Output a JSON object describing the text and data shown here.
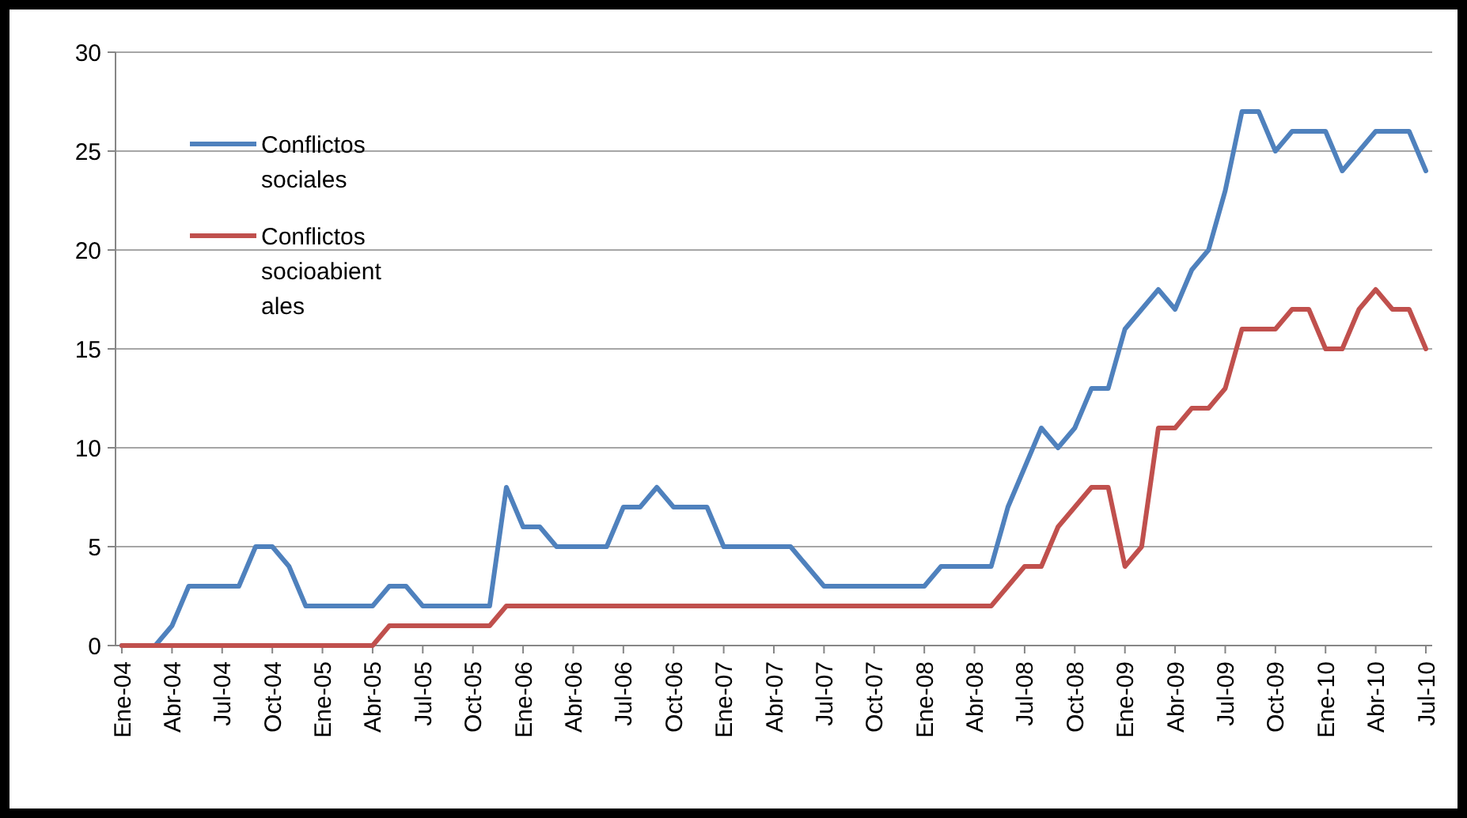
{
  "chart_data": {
    "type": "line",
    "categories": [
      "Ene-04",
      null,
      null,
      "Abr-04",
      null,
      null,
      "Jul-04",
      null,
      null,
      "Oct-04",
      null,
      null,
      "Ene-05",
      null,
      null,
      "Abr-05",
      null,
      null,
      "Jul-05",
      null,
      null,
      "Oct-05",
      null,
      null,
      "Ene-06",
      null,
      null,
      "Abr-06",
      null,
      null,
      "Jul-06",
      null,
      null,
      "Oct-06",
      null,
      null,
      "Ene-07",
      null,
      null,
      "Abr-07",
      null,
      null,
      "Jul-07",
      null,
      null,
      "Oct-07",
      null,
      null,
      "Ene-08",
      null,
      null,
      "Abr-08",
      null,
      null,
      "Jul-08",
      null,
      null,
      "Oct-08",
      null,
      null,
      "Ene-09",
      null,
      null,
      "Abr-09",
      null,
      null,
      "Jul-09",
      null,
      null,
      "Oct-09",
      null,
      null,
      "Ene-10",
      null,
      null,
      "Abr-10",
      null,
      null,
      "Jul-10"
    ],
    "series": [
      {
        "name": "Conflictos sociales",
        "color": "#4f81bd",
        "values": [
          0,
          0,
          0,
          1,
          3,
          3,
          3,
          3,
          5,
          5,
          4,
          2,
          2,
          2,
          2,
          2,
          3,
          3,
          2,
          2,
          2,
          2,
          2,
          8,
          6,
          6,
          5,
          5,
          5,
          5,
          7,
          7,
          8,
          7,
          7,
          7,
          5,
          5,
          5,
          5,
          5,
          4,
          3,
          3,
          3,
          3,
          3,
          3,
          3,
          4,
          4,
          4,
          4,
          7,
          9,
          11,
          10,
          11,
          13,
          13,
          16,
          17,
          18,
          17,
          19,
          20,
          23,
          27,
          27,
          25,
          26,
          26,
          26,
          24,
          25,
          26,
          26,
          26,
          24
        ]
      },
      {
        "name": "Conflictos socioabientales",
        "color": "#c0504d",
        "values": [
          0,
          0,
          0,
          0,
          0,
          0,
          0,
          0,
          0,
          0,
          0,
          0,
          0,
          0,
          0,
          0,
          1,
          1,
          1,
          1,
          1,
          1,
          1,
          2,
          2,
          2,
          2,
          2,
          2,
          2,
          2,
          2,
          2,
          2,
          2,
          2,
          2,
          2,
          2,
          2,
          2,
          2,
          2,
          2,
          2,
          2,
          2,
          2,
          2,
          2,
          2,
          2,
          2,
          3,
          4,
          4,
          6,
          7,
          8,
          8,
          4,
          5,
          11,
          11,
          12,
          12,
          13,
          16,
          16,
          16,
          17,
          17,
          15,
          15,
          17,
          18,
          17,
          17,
          15
        ]
      }
    ],
    "ylim": [
      0,
      30
    ],
    "yticks": [
      0,
      5,
      10,
      15,
      20,
      25,
      30
    ],
    "grid": "y",
    "legend": "top left",
    "marker": "none",
    "line_style": "solid"
  }
}
